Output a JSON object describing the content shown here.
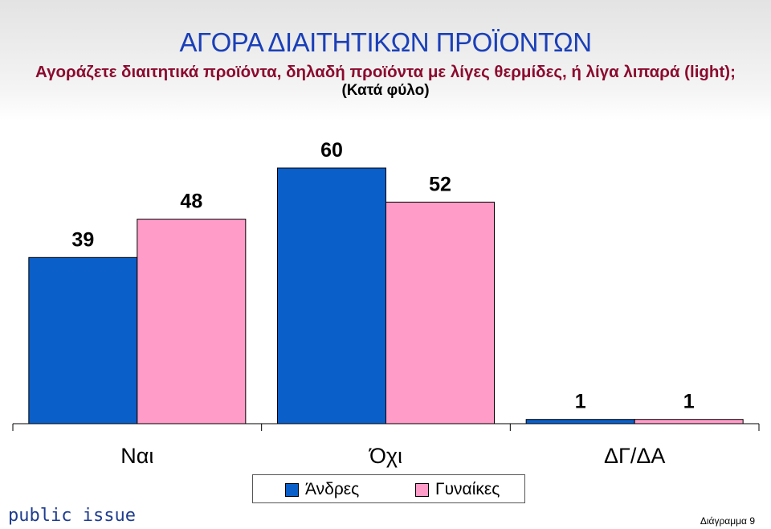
{
  "title": "ΑΓΟΡΑ ΔΙΑΙΤΗΤΙΚΩΝ ΠΡΟΪΟΝΤΩΝ",
  "subtitle": "Αγοράζετε διαιτητικά προϊόντα, δηλαδή προϊόντα με λίγες θερμίδες, ή λίγα λιπαρά (light);",
  "subsubtitle": "(Κατά φύλο)",
  "brand": "public issue",
  "page_label": "Διάγραμμα 9",
  "chart_data": {
    "type": "bar",
    "categories": [
      "Ναι",
      "Όχι",
      "ΔΓ/ΔΑ"
    ],
    "series": [
      {
        "name": "Άνδρες",
        "values": [
          39,
          60,
          1
        ],
        "color": "#0a5fc9"
      },
      {
        "name": "Γυναίκες",
        "values": [
          48,
          52,
          1
        ],
        "color": "#ff9cc8"
      }
    ],
    "ylim": [
      0,
      60
    ],
    "grid": false,
    "legend_position": "bottom"
  }
}
